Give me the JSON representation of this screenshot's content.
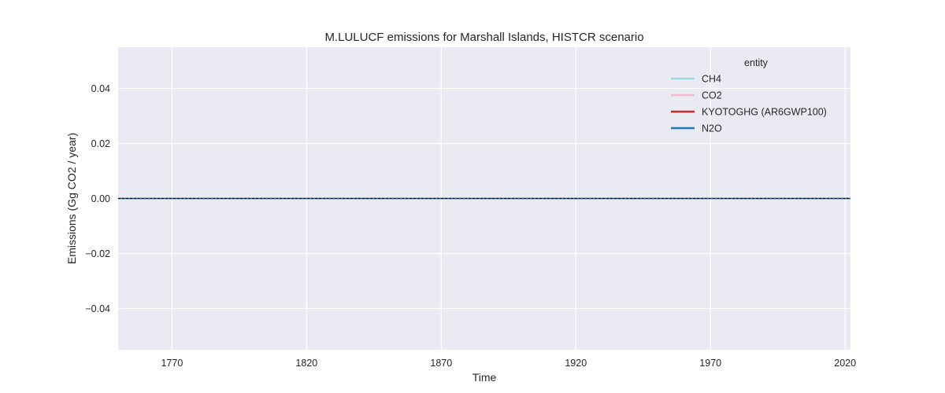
{
  "chart_data": {
    "type": "line",
    "title": "M.LULUCF emissions for Marshall Islands, HISTCR scenario",
    "xlabel": "Time",
    "ylabel": "Emissions (Gg CO2 / year)",
    "xlim": [
      1750,
      2022
    ],
    "ylim": [
      -0.055,
      0.055
    ],
    "xticks": [
      1770,
      1820,
      1870,
      1920,
      1970,
      2020
    ],
    "yticks": [
      -0.04,
      -0.02,
      0.0,
      0.02,
      0.04
    ],
    "ytick_labels": [
      "−0.04",
      "−0.02",
      "0.00",
      "0.02",
      "0.04"
    ],
    "grid": true,
    "legend": {
      "title": "entity",
      "placement": "top-right"
    },
    "zero_line": {
      "y": 0,
      "style": "dashed",
      "color": "#000000"
    },
    "series": [
      {
        "name": "CH4",
        "color": "#9edae5",
        "x": [
          1750,
          2022
        ],
        "y": [
          0,
          0
        ]
      },
      {
        "name": "CO2",
        "color": "#f7b6d2",
        "x": [
          1750,
          2022
        ],
        "y": [
          0,
          0
        ]
      },
      {
        "name": "KYOTOGHG (AR6GWP100)",
        "color": "#d62728",
        "x": [
          1750,
          2022
        ],
        "y": [
          0,
          0
        ]
      },
      {
        "name": "N2O",
        "color": "#1f77b4",
        "x": [
          1750,
          2022
        ],
        "y": [
          0,
          0
        ]
      }
    ]
  }
}
